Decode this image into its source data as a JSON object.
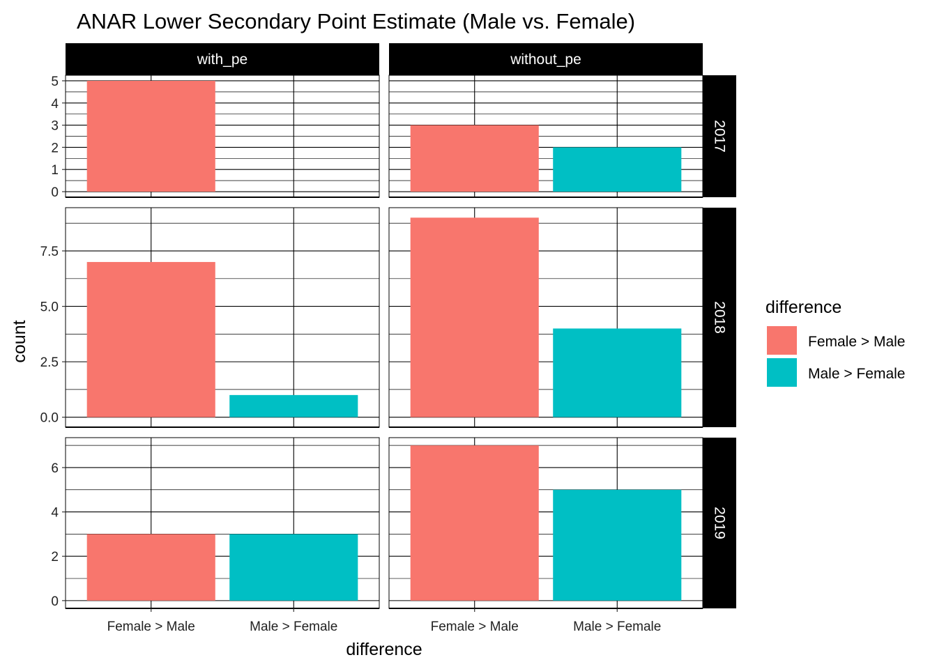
{
  "chart_data": {
    "type": "bar",
    "title": "ANAR Lower Secondary Point Estimate (Male vs. Female)",
    "xlabel": "difference",
    "ylabel": "count",
    "categories": [
      "Female >  Male",
      "Male > Female"
    ],
    "colors": {
      "Female >  Male": "#F8766D",
      "Male > Female": "#00BFC4"
    },
    "legend": {
      "title": "difference",
      "entries": [
        "Female >  Male",
        "Male > Female"
      ],
      "position": "right"
    },
    "facet_columns": [
      "with_pe",
      "without_pe"
    ],
    "facet_rows": [
      "2017",
      "2018",
      "2019"
    ],
    "facet_y": {
      "2017": {
        "ylim": [
          -0.25,
          5.25
        ],
        "ticks": [
          0,
          1,
          2,
          3,
          4,
          5
        ],
        "tick_labels": [
          "0",
          "1",
          "2",
          "3",
          "4",
          "5"
        ]
      },
      "2018": {
        "ylim": [
          -0.45,
          9.45
        ],
        "ticks": [
          0,
          2.5,
          5,
          7.5
        ],
        "tick_labels": [
          "0.0",
          "2.5",
          "5.0",
          "7.5"
        ]
      },
      "2019": {
        "ylim": [
          -0.35,
          7.35
        ],
        "ticks": [
          0,
          2,
          4,
          6
        ],
        "tick_labels": [
          "0",
          "2",
          "4",
          "6"
        ]
      }
    },
    "panels": [
      {
        "column": "with_pe",
        "row": "2017",
        "values": {
          "Female >  Male": 5
        }
      },
      {
        "column": "without_pe",
        "row": "2017",
        "values": {
          "Female >  Male": 3,
          "Male > Female": 2
        }
      },
      {
        "column": "with_pe",
        "row": "2018",
        "values": {
          "Female >  Male": 7,
          "Male > Female": 1
        }
      },
      {
        "column": "without_pe",
        "row": "2018",
        "values": {
          "Female >  Male": 9,
          "Male > Female": 4
        }
      },
      {
        "column": "with_pe",
        "row": "2019",
        "values": {
          "Female >  Male": 3,
          "Male > Female": 3
        }
      },
      {
        "column": "without_pe",
        "row": "2019",
        "values": {
          "Female >  Male": 7,
          "Male > Female": 5
        }
      }
    ],
    "grid": true
  }
}
